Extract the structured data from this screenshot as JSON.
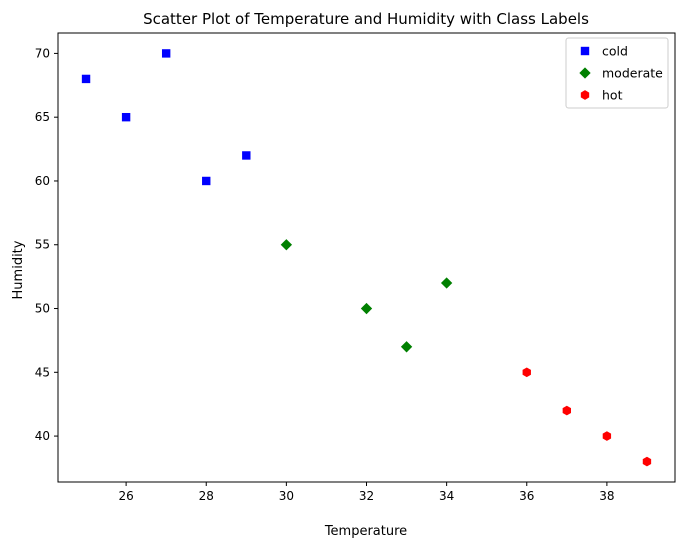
{
  "chart_data": {
    "type": "scatter",
    "title": "Scatter Plot of Temperature and Humidity with Class Labels",
    "xlabel": "Temperature",
    "ylabel": "Humidity",
    "xlim": [
      24.3,
      39.7
    ],
    "ylim": [
      36.4,
      71.6
    ],
    "xticks": [
      26,
      28,
      30,
      32,
      34,
      36,
      38
    ],
    "yticks": [
      40,
      45,
      50,
      55,
      60,
      65,
      70
    ],
    "grid": false,
    "legend_position": "top-right",
    "series": [
      {
        "name": "cold",
        "marker": "square",
        "color": "#0000ff",
        "x": [
          25,
          26,
          27,
          28,
          29
        ],
        "y": [
          68,
          65,
          70,
          60,
          62
        ]
      },
      {
        "name": "moderate",
        "marker": "diamond",
        "color": "#008000",
        "x": [
          30,
          32,
          33,
          34
        ],
        "y": [
          55,
          50,
          47,
          52
        ]
      },
      {
        "name": "hot",
        "marker": "hexagon",
        "color": "#ff0000",
        "x": [
          36,
          37,
          38,
          39
        ],
        "y": [
          45,
          42,
          40,
          38
        ]
      }
    ]
  }
}
